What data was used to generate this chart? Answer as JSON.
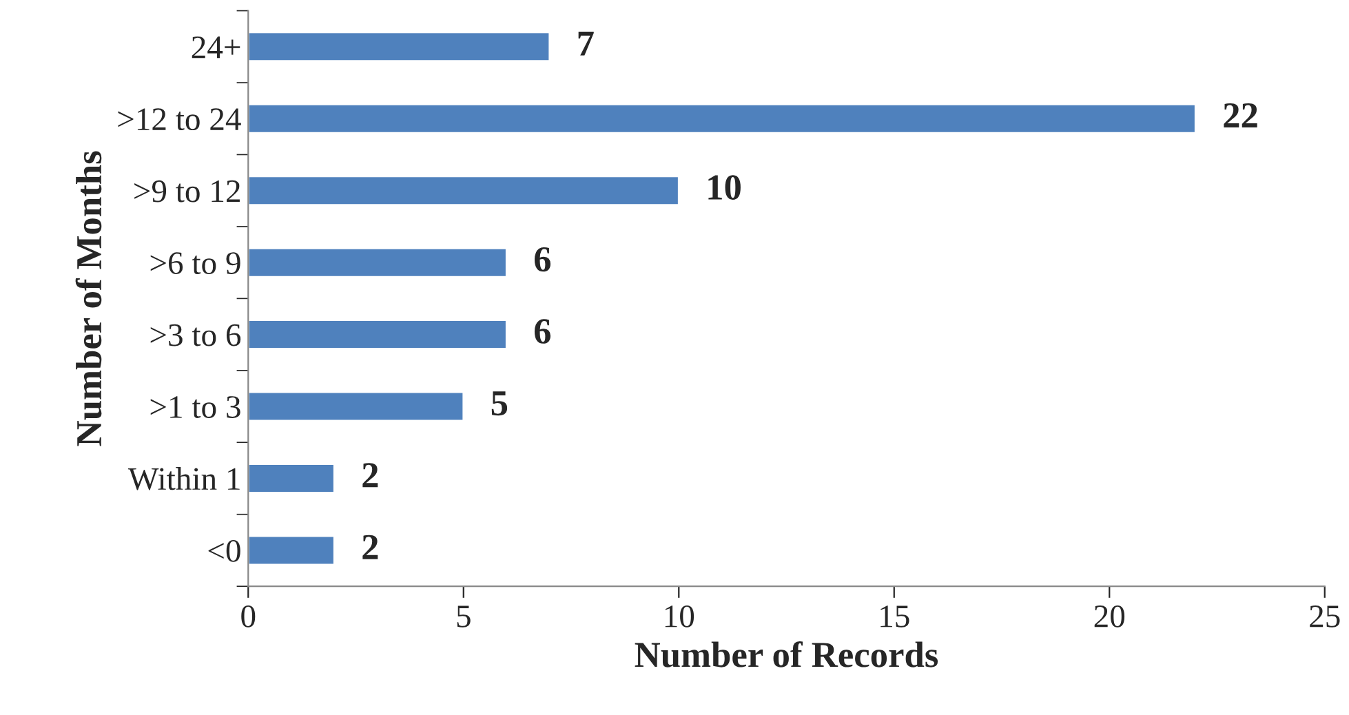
{
  "chart_data": {
    "type": "bar",
    "orientation": "horizontal",
    "xlabel": "Number of Records",
    "ylabel": "Number of Months",
    "categories": [
      "24+",
      ">12 to 24",
      ">9 to 12",
      ">6 to 9",
      ">3 to 6",
      ">1 to 3",
      "Within 1",
      "<0"
    ],
    "values": [
      7,
      22,
      10,
      6,
      6,
      5,
      2,
      2
    ],
    "color": "#4f81bd",
    "xlim": [
      0,
      25
    ],
    "xticks": [
      0,
      5,
      10,
      15,
      20,
      25
    ],
    "grid": false,
    "data_labels": true
  }
}
